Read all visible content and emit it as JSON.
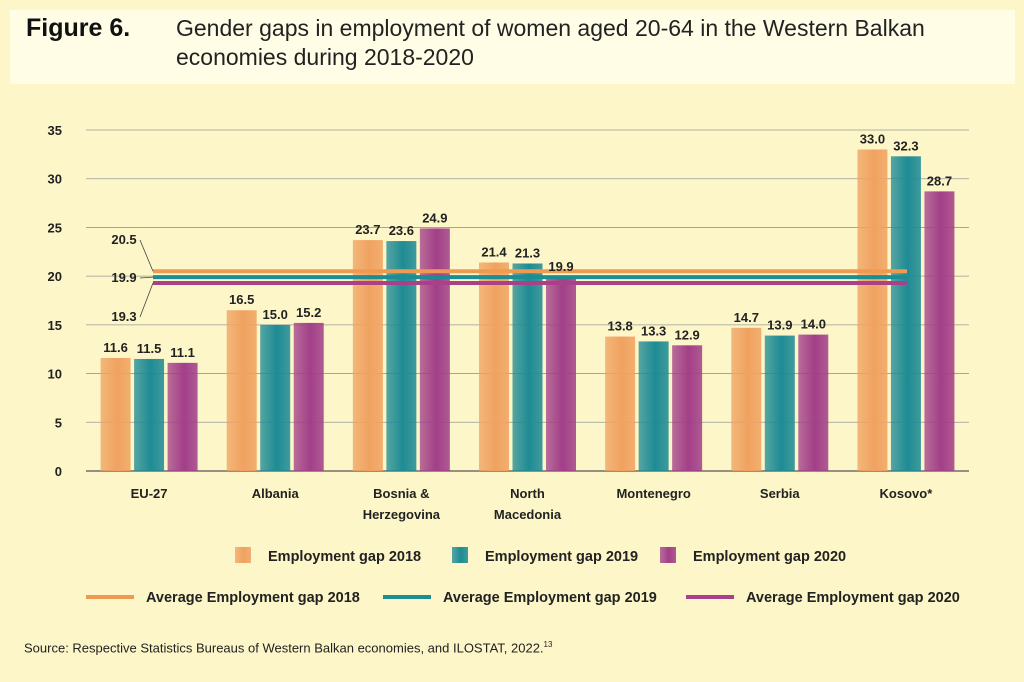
{
  "figure": {
    "label": "Figure 6.",
    "title": "Gender gaps in employment of women aged 20-64 in the Western Balkan economies during 2018-2020"
  },
  "source": {
    "text": "Source: Respective Statistics Bureaus of Western Balkan economies, and ILOSTAT, 2022.",
    "footnote": "13"
  },
  "colors": {
    "gap2018": "#f0a260",
    "gap2019": "#1e8b94",
    "gap2020": "#a23f88",
    "avg2018": "#ef9a52",
    "avg2019": "#1b8d93",
    "avg2020": "#a8408a",
    "background": "#fdf6c8",
    "header": "#fffde6"
  },
  "chart_data": {
    "type": "bar",
    "categories": [
      [
        "EU-27"
      ],
      [
        "Albania"
      ],
      [
        "Bosnia &",
        "Herzegovina"
      ],
      [
        "North",
        "Macedonia"
      ],
      [
        "Montenegro"
      ],
      [
        "Serbia"
      ],
      [
        "Kosovo*"
      ]
    ],
    "series": [
      {
        "name": "Employment gap 2018",
        "values": [
          11.6,
          16.5,
          23.7,
          21.4,
          13.8,
          14.7,
          33.0
        ]
      },
      {
        "name": "Employment gap 2019",
        "values": [
          11.5,
          15.0,
          23.6,
          21.3,
          13.3,
          13.9,
          32.3
        ]
      },
      {
        "name": "Employment gap 2020",
        "values": [
          11.1,
          15.2,
          24.9,
          19.9,
          12.9,
          14.0,
          28.7
        ]
      }
    ],
    "averages": [
      {
        "name": "Average Employment gap 2018",
        "value": 20.5
      },
      {
        "name": "Average Employment gap 2019",
        "value": 19.9
      },
      {
        "name": "Average Employment gap 2020",
        "value": 19.3
      }
    ],
    "ylim": [
      0,
      35
    ],
    "yticks": [
      0,
      5,
      10,
      15,
      20,
      25,
      30,
      35
    ],
    "grid": true,
    "legend_position": "bottom"
  }
}
